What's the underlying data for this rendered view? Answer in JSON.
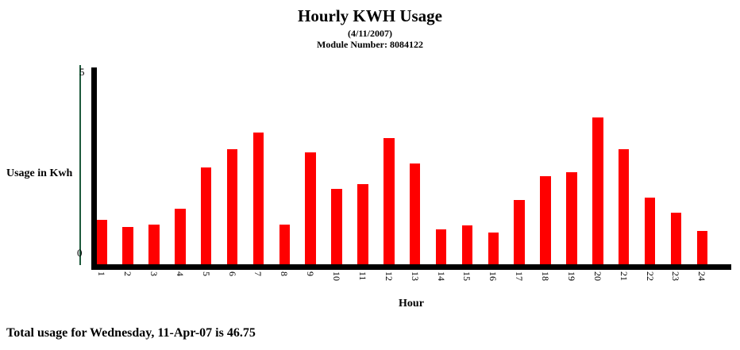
{
  "header": {
    "title": "Hourly KWH Usage",
    "date_line": "(4/11/2007)",
    "module_line": "Module Number: 8084122"
  },
  "axes": {
    "ylabel": "Usage in Kwh",
    "xlabel": "Hour",
    "ytick_top": "5",
    "ytick_bottom": "0"
  },
  "footer": {
    "total_text": "Total usage for Wednesday, 11-Apr-07 is 46.75"
  },
  "colors": {
    "bar": "#ff0000",
    "axis": "#000000",
    "y_guide_line": "#1e5a3c",
    "text": "#000000",
    "background": "#ffffff"
  },
  "chart_data": {
    "type": "bar",
    "title": "Hourly KWH Usage",
    "subtitle": "(4/11/2007)",
    "module_number": "8084122",
    "xlabel": "Hour",
    "ylabel": "Usage in Kwh",
    "ylim": [
      0,
      5
    ],
    "ytick_values": [
      0,
      5
    ],
    "grid": false,
    "legend": false,
    "bar_color": "#ff0000",
    "categories": [
      1,
      2,
      3,
      4,
      5,
      6,
      7,
      8,
      9,
      10,
      11,
      12,
      13,
      14,
      15,
      16,
      17,
      18,
      19,
      20,
      21,
      22,
      23,
      24
    ],
    "values": [
      1.15,
      0.95,
      1.02,
      1.43,
      2.48,
      2.96,
      3.38,
      1.02,
      2.88,
      1.94,
      2.07,
      3.25,
      2.59,
      0.89,
      1.01,
      0.82,
      1.65,
      2.26,
      2.37,
      3.78,
      2.96,
      1.72,
      1.32,
      0.85
    ],
    "total": 46.75,
    "total_date_label": "Wednesday, 11-Apr-07"
  }
}
